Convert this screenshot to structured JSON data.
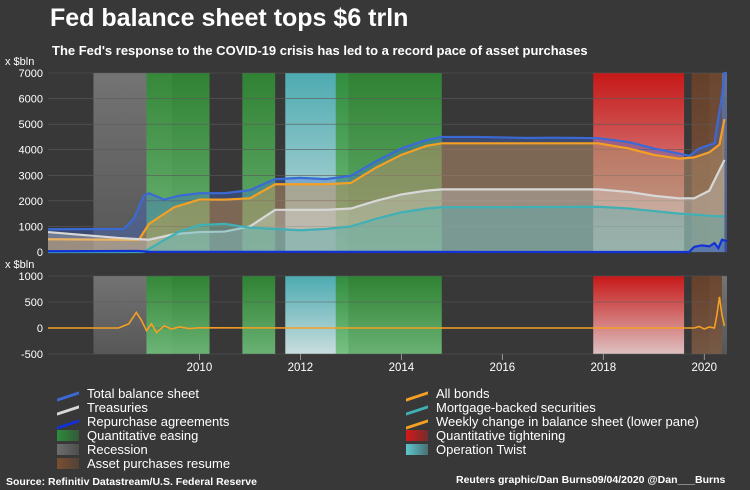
{
  "header": {
    "title": "Fed balance sheet tops $6 trln",
    "subtitle": "The Fed's response to the COVID-19 crisis has led to a record pace of asset purchases"
  },
  "chart_data": {
    "type": "area",
    "title": "Fed balance sheet tops $6 trln",
    "x_range": [
      2007.0,
      2020.45
    ],
    "x_ticks": [
      "2010",
      "2012",
      "2014",
      "2016",
      "2018",
      "2020"
    ],
    "panes": [
      {
        "name": "upper",
        "ylabel": "x $bln",
        "ylim": [
          0,
          7000
        ],
        "y_ticks": [
          "0",
          "1000",
          "2000",
          "3000",
          "4000",
          "5000",
          "6000",
          "7000"
        ],
        "series": [
          {
            "name": "Total balance sheet",
            "color": "#3b6ad6",
            "points": [
              [
                2007.0,
                890
              ],
              [
                2008.5,
                900
              ],
              [
                2008.7,
                1300
              ],
              [
                2008.9,
                2200
              ],
              [
                2009.0,
                2300
              ],
              [
                2009.3,
                2050
              ],
              [
                2009.6,
                2200
              ],
              [
                2010.0,
                2300
              ],
              [
                2010.5,
                2300
              ],
              [
                2011.0,
                2420
              ],
              [
                2011.5,
                2850
              ],
              [
                2012.0,
                2900
              ],
              [
                2012.5,
                2850
              ],
              [
                2013.0,
                2980
              ],
              [
                2013.5,
                3550
              ],
              [
                2014.0,
                4050
              ],
              [
                2014.5,
                4380
              ],
              [
                2014.8,
                4500
              ],
              [
                2015.5,
                4500
              ],
              [
                2016.0,
                4480
              ],
              [
                2016.5,
                4460
              ],
              [
                2017.0,
                4470
              ],
              [
                2017.5,
                4460
              ],
              [
                2017.9,
                4450
              ],
              [
                2018.5,
                4300
              ],
              [
                2019.0,
                4050
              ],
              [
                2019.5,
                3850
              ],
              [
                2019.7,
                3760
              ],
              [
                2019.9,
                4050
              ],
              [
                2020.2,
                4250
              ],
              [
                2020.35,
                6100
              ],
              [
                2020.4,
                7000
              ],
              [
                2020.45,
                7000
              ]
            ]
          },
          {
            "name": "All bonds",
            "color": "#f5a023",
            "points": [
              [
                2007.0,
                500
              ],
              [
                2008.5,
                480
              ],
              [
                2008.8,
                480
              ],
              [
                2009.0,
                1100
              ],
              [
                2009.5,
                1750
              ],
              [
                2010.0,
                2050
              ],
              [
                2010.5,
                2050
              ],
              [
                2011.0,
                2100
              ],
              [
                2011.5,
                2650
              ],
              [
                2012.0,
                2650
              ],
              [
                2012.5,
                2650
              ],
              [
                2013.0,
                2700
              ],
              [
                2013.5,
                3300
              ],
              [
                2014.0,
                3800
              ],
              [
                2014.5,
                4150
              ],
              [
                2014.8,
                4250
              ],
              [
                2016.0,
                4250
              ],
              [
                2017.0,
                4250
              ],
              [
                2017.9,
                4250
              ],
              [
                2018.5,
                4050
              ],
              [
                2019.0,
                3800
              ],
              [
                2019.5,
                3650
              ],
              [
                2019.8,
                3700
              ],
              [
                2020.1,
                3900
              ],
              [
                2020.3,
                4200
              ],
              [
                2020.4,
                5200
              ]
            ]
          },
          {
            "name": "Treasuries",
            "color": "#d8d8d8",
            "points": [
              [
                2007.0,
                780
              ],
              [
                2008.4,
                550
              ],
              [
                2009.0,
                480
              ],
              [
                2009.5,
                700
              ],
              [
                2010.0,
                780
              ],
              [
                2010.5,
                800
              ],
              [
                2011.0,
                1000
              ],
              [
                2011.5,
                1650
              ],
              [
                2012.0,
                1650
              ],
              [
                2012.5,
                1650
              ],
              [
                2013.0,
                1700
              ],
              [
                2013.5,
                2000
              ],
              [
                2014.0,
                2250
              ],
              [
                2014.5,
                2400
              ],
              [
                2014.8,
                2450
              ],
              [
                2016.0,
                2450
              ],
              [
                2017.9,
                2450
              ],
              [
                2018.5,
                2350
              ],
              [
                2019.0,
                2200
              ],
              [
                2019.5,
                2100
              ],
              [
                2019.8,
                2100
              ],
              [
                2020.1,
                2400
              ],
              [
                2020.4,
                3600
              ]
            ]
          },
          {
            "name": "Mortgage-backed securities",
            "color": "#3fb0b5",
            "points": [
              [
                2007.0,
                0
              ],
              [
                2008.9,
                0
              ],
              [
                2009.2,
                350
              ],
              [
                2009.6,
                800
              ],
              [
                2010.0,
                1050
              ],
              [
                2010.5,
                1100
              ],
              [
                2011.0,
                950
              ],
              [
                2011.5,
                900
              ],
              [
                2012.0,
                850
              ],
              [
                2012.5,
                900
              ],
              [
                2013.0,
                1000
              ],
              [
                2013.5,
                1300
              ],
              [
                2014.0,
                1550
              ],
              [
                2014.5,
                1700
              ],
              [
                2014.8,
                1750
              ],
              [
                2016.0,
                1750
              ],
              [
                2017.9,
                1770
              ],
              [
                2018.5,
                1700
              ],
              [
                2019.0,
                1600
              ],
              [
                2019.5,
                1500
              ],
              [
                2019.9,
                1450
              ],
              [
                2020.2,
                1400
              ],
              [
                2020.4,
                1400
              ]
            ]
          },
          {
            "name": "Repurchase agreements",
            "color": "#1232d8",
            "points": [
              [
                2007.0,
                30
              ],
              [
                2008.8,
                40
              ],
              [
                2009.0,
                10
              ],
              [
                2019.7,
                0
              ],
              [
                2019.8,
                200
              ],
              [
                2019.95,
                260
              ],
              [
                2020.1,
                220
              ],
              [
                2020.2,
                350
              ],
              [
                2020.28,
                150
              ],
              [
                2020.35,
                480
              ],
              [
                2020.45,
                420
              ]
            ]
          }
        ]
      },
      {
        "name": "lower",
        "ylabel": "x $bln",
        "ylim": [
          -500,
          1000
        ],
        "y_ticks": [
          "-500",
          "0",
          "500",
          "1000"
        ],
        "series": [
          {
            "name": "Weekly change in balance sheet (lower pane)",
            "color": "#f5a023",
            "points": [
              [
                2007.0,
                0
              ],
              [
                2008.4,
                0
              ],
              [
                2008.6,
                80
              ],
              [
                2008.75,
                300
              ],
              [
                2008.85,
                150
              ],
              [
                2008.95,
                -50
              ],
              [
                2009.05,
                80
              ],
              [
                2009.15,
                -90
              ],
              [
                2009.3,
                40
              ],
              [
                2009.45,
                -20
              ],
              [
                2009.6,
                20
              ],
              [
                2009.8,
                -10
              ],
              [
                2010.0,
                5
              ],
              [
                2012.0,
                0
              ],
              [
                2016.0,
                0
              ],
              [
                2019.8,
                0
              ],
              [
                2019.9,
                30
              ],
              [
                2020.0,
                -20
              ],
              [
                2020.1,
                20
              ],
              [
                2020.2,
                0
              ],
              [
                2020.25,
                250
              ],
              [
                2020.3,
                600
              ],
              [
                2020.35,
                250
              ],
              [
                2020.4,
                40
              ]
            ]
          }
        ]
      }
    ],
    "shaded_periods": [
      {
        "name": "Recession",
        "start": 2007.9,
        "end": 2009.45
      },
      {
        "name": "Quantitative easing",
        "start": 2008.95,
        "end": 2010.2
      },
      {
        "name": "Quantitative easing",
        "start": 2010.85,
        "end": 2011.5
      },
      {
        "name": "Operation Twist",
        "start": 2011.7,
        "end": 2012.95
      },
      {
        "name": "Quantitative easing",
        "start": 2012.7,
        "end": 2014.8
      },
      {
        "name": "Quantitative tightening",
        "start": 2017.8,
        "end": 2019.6
      },
      {
        "name": "Recession",
        "start": 2020.1,
        "end": 2020.45
      },
      {
        "name": "Asset purchases resume",
        "start": 2019.75,
        "end": 2020.35
      }
    ],
    "legend_position": "bottom"
  },
  "legend": {
    "items": [
      {
        "label": "Total balance sheet",
        "color": "#3b6ad6"
      },
      {
        "label": "Treasuries",
        "color": "#d8d8d8"
      },
      {
        "label": "Repurchase agreements",
        "color": "#1232d8"
      },
      {
        "label": "Quantitative easing",
        "color": "#2e8b3a"
      },
      {
        "label": "Recession",
        "color": "#6e6e6e"
      },
      {
        "label": "Asset purchases resume",
        "color": "#7a4f32"
      },
      {
        "label": "All bonds",
        "color": "#f5a023"
      },
      {
        "label": "Mortgage-backed securities",
        "color": "#3fb0b5"
      },
      {
        "label": "Weekly change in balance sheet (lower pane)",
        "color": "#f5a023"
      },
      {
        "label": "Quantitative tightening",
        "color": "#d21a1a"
      },
      {
        "label": "Operation Twist",
        "color": "#5ec6cc"
      }
    ]
  },
  "footer": {
    "source": "Source: Refinitiv Datastream/U.S. Federal Reserve",
    "credit": "Reuters graphic/Dan Burns09/04/2020 @Dan___Burns"
  }
}
